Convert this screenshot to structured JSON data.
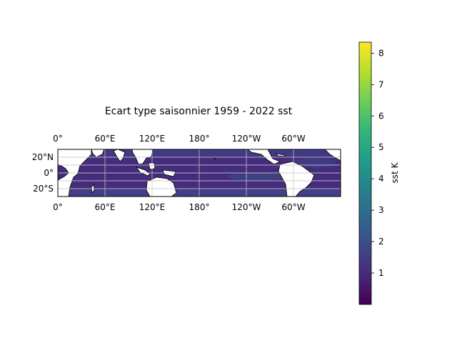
{
  "chart_data": {
    "type": "heatmap",
    "title": "Ecart type saisonnier 1959 - 2022 sst",
    "map": {
      "projection": "PlateCarree",
      "lon_range": [
        0,
        360
      ],
      "lat_range": [
        -30,
        30
      ],
      "grid": true,
      "coastlines": true,
      "land_color": "#ffffff",
      "ocean_field_range": [
        1.0,
        2.2
      ],
      "x_tick_labels": [
        "0°",
        "60°E",
        "120°E",
        "180°",
        "120°W",
        "60°W"
      ],
      "x_tick_lons": [
        0,
        60,
        120,
        180,
        240,
        300
      ],
      "y_tick_labels": [
        "20°N",
        "0°",
        "20°S"
      ],
      "y_tick_lats": [
        20,
        0,
        -20
      ]
    },
    "colorbar": {
      "label": "sst K",
      "colormap": "viridis",
      "range": [
        0.0,
        8.35
      ],
      "tick_labels": [
        "1",
        "2",
        "3",
        "4",
        "5",
        "6",
        "7",
        "8"
      ],
      "tick_values": [
        1,
        2,
        3,
        4,
        5,
        6,
        7,
        8
      ],
      "colors": [
        "#440154",
        "#482878",
        "#3e4989",
        "#31688e",
        "#26828e",
        "#1f9e89",
        "#35b779",
        "#6ece58",
        "#b5de2b",
        "#fde725"
      ]
    }
  }
}
